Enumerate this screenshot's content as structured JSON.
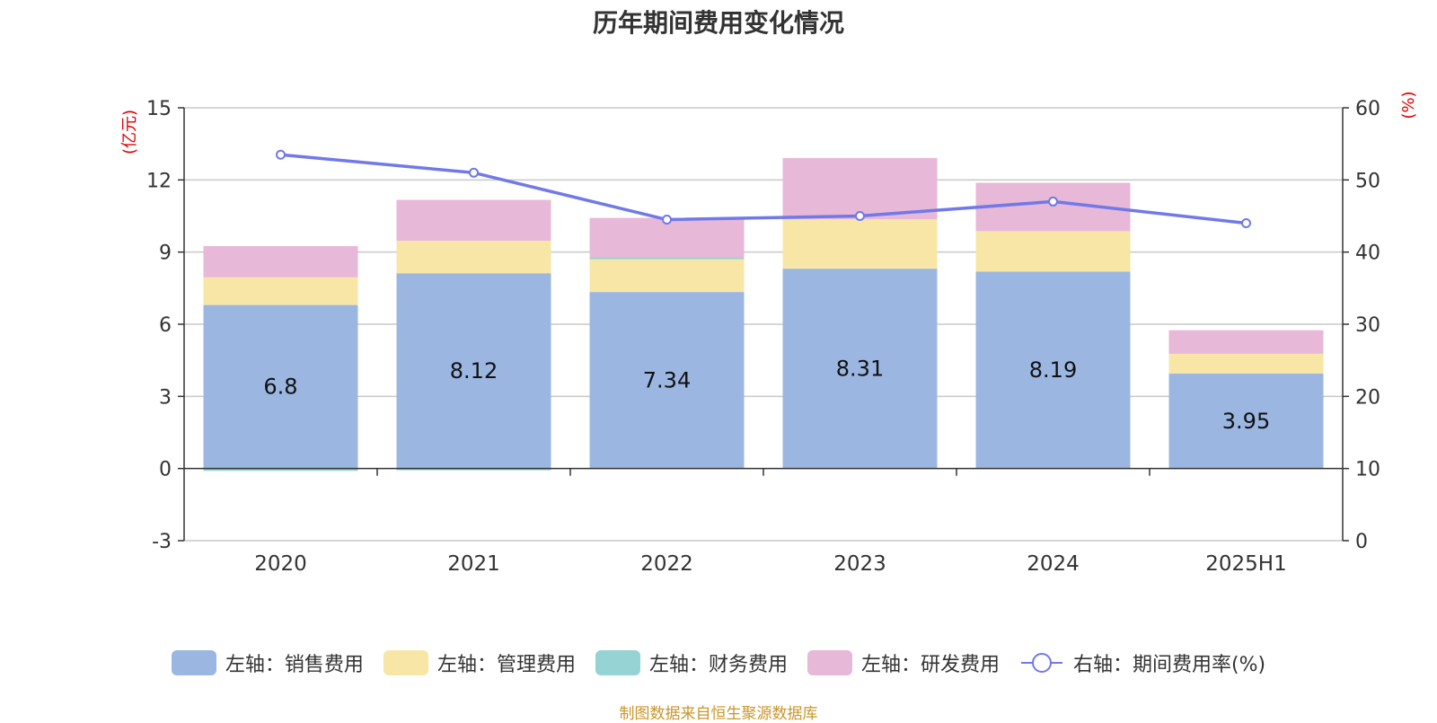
{
  "title": "历年期间费用变化情况",
  "source": "制图数据来自恒生聚源数据库",
  "colors": {
    "selling": "#9bb7e1",
    "admin": "#f8e6a6",
    "finance": "#96d3d4",
    "rd": "#e7b8d8",
    "rate": "#7179e8",
    "axis_unit": "#e00000",
    "source": "#c9962b"
  },
  "chart_data": {
    "type": "bar",
    "stacked": true,
    "title": "历年期间费用变化情况",
    "categories": [
      "2020",
      "2021",
      "2022",
      "2023",
      "2024",
      "2025H1"
    ],
    "left_axis": {
      "unit": "(亿元)",
      "ylim": [
        -3,
        15
      ],
      "ticks": [
        -3,
        0,
        3,
        6,
        9,
        12,
        15
      ]
    },
    "right_axis": {
      "unit": "(%)",
      "ylim": [
        0,
        60
      ],
      "ticks": [
        0,
        10,
        20,
        30,
        40,
        50,
        60
      ]
    },
    "series": [
      {
        "name": "左轴：销售费用",
        "axis": "left",
        "type": "bar",
        "color_key": "selling",
        "values": [
          6.8,
          8.12,
          7.34,
          8.31,
          8.19,
          3.95
        ],
        "show_labels": true
      },
      {
        "name": "左轴：管理费用",
        "axis": "left",
        "type": "bar",
        "color_key": "admin",
        "values": [
          1.15,
          1.35,
          1.42,
          2.05,
          1.68,
          0.82
        ]
      },
      {
        "name": "左轴：财务费用",
        "axis": "left",
        "type": "bar",
        "color_key": "finance",
        "values": [
          -0.1,
          -0.02,
          0.02,
          0.0,
          0.0,
          0.0
        ]
      },
      {
        "name": "左轴：研发费用",
        "axis": "left",
        "type": "bar",
        "color_key": "rd",
        "values": [
          1.3,
          1.7,
          1.64,
          2.55,
          2.01,
          0.98
        ]
      },
      {
        "name": "右轴：期间费用率(%)",
        "axis": "right",
        "type": "line",
        "color_key": "rate",
        "values": [
          53.5,
          51.0,
          44.5,
          45.0,
          47.0,
          44.0
        ]
      }
    ],
    "grid": true,
    "legend_position": "bottom"
  }
}
